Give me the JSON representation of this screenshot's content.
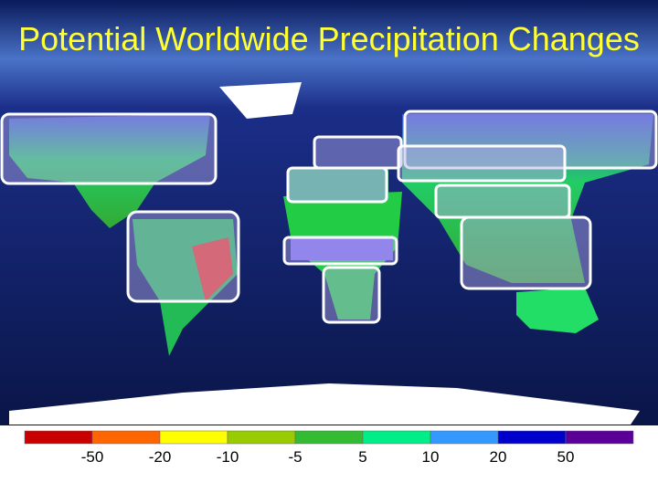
{
  "title": "Potential Worldwide Precipitation Changes",
  "legend": {
    "colors": [
      "#c80000",
      "#ff6600",
      "#ffff00",
      "#99cc00",
      "#33bb33",
      "#00ee88",
      "#3399ff",
      "#0000cc",
      "#5a0099"
    ],
    "labels": [
      -50,
      -20,
      -10,
      -5,
      5,
      10,
      20,
      50
    ]
  }
}
